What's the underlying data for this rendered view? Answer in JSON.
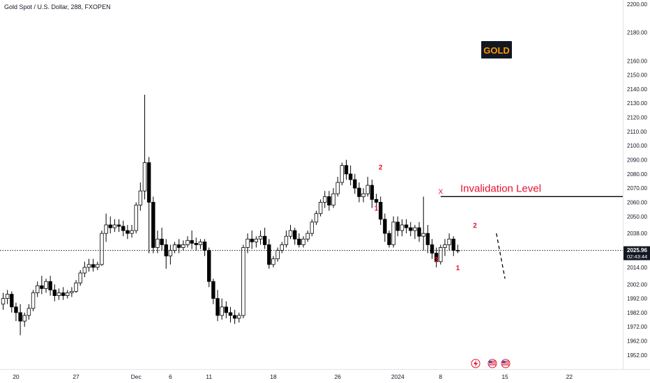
{
  "chart_data": {
    "type": "candlestick",
    "title": "Gold Spot / U.S. Dollar, 288, FXOPEN",
    "symbol_badge": "GOLD",
    "colors": {
      "up": "#ffffff",
      "down": "#000000",
      "wick": "#000000",
      "wave_label": "#e8112d",
      "badge_bg": "#131722",
      "badge_text": "#ff9800"
    },
    "y_axis": {
      "ylim": [
        1948,
        2201
      ],
      "ticks": [
        "2200.00",
        "2180.00",
        "2160.00",
        "2150.00",
        "2140.00",
        "2130.00",
        "2120.00",
        "2110.00",
        "2100.00",
        "2090.00",
        "2080.00",
        "2070.00",
        "2060.00",
        "2050.00",
        "2038.00",
        "2025.96",
        "2014.00",
        "2002.00",
        "1992.00",
        "1982.00",
        "1972.00",
        "1962.00",
        "1952.00"
      ],
      "tick_values": [
        2200,
        2180,
        2160,
        2150,
        2140,
        2130,
        2120,
        2110,
        2100,
        2090,
        2080,
        2070,
        2060,
        2050,
        2038,
        2026,
        2014,
        2002,
        1992,
        1982,
        1972,
        1962,
        1952
      ]
    },
    "x_axis": {
      "ticks": [
        "20",
        "27",
        "Dec",
        "6",
        "11",
        "18",
        "26",
        "2024",
        "8",
        "15",
        "22"
      ],
      "tick_index": [
        3,
        17,
        31,
        39,
        48,
        63,
        78,
        92,
        102,
        117,
        132
      ]
    },
    "current_price": {
      "value": 2025.96,
      "label": "2025.96",
      "countdown": "02:43:44"
    },
    "series": [
      {
        "o": 1988,
        "h": 1996,
        "c": 1992,
        "l": 1984
      },
      {
        "o": 1992,
        "h": 1998,
        "c": 1995,
        "l": 1988
      },
      {
        "o": 1995,
        "h": 1997,
        "c": 1986,
        "l": 1982
      },
      {
        "o": 1986,
        "h": 1989,
        "c": 1982,
        "l": 1976
      },
      {
        "o": 1982,
        "h": 1988,
        "c": 1976,
        "l": 1966
      },
      {
        "o": 1976,
        "h": 1982,
        "c": 1980,
        "l": 1972
      },
      {
        "o": 1980,
        "h": 1988,
        "c": 1985,
        "l": 1977
      },
      {
        "o": 1985,
        "h": 1998,
        "c": 1996,
        "l": 1983
      },
      {
        "o": 1996,
        "h": 2004,
        "c": 2001,
        "l": 1993
      },
      {
        "o": 2001,
        "h": 2008,
        "c": 1999,
        "l": 1995
      },
      {
        "o": 1999,
        "h": 2006,
        "c": 2004,
        "l": 1996
      },
      {
        "o": 2004,
        "h": 2008,
        "c": 1998,
        "l": 1994
      },
      {
        "o": 1998,
        "h": 2002,
        "c": 1994,
        "l": 1990
      },
      {
        "o": 1994,
        "h": 1999,
        "c": 1996,
        "l": 1991
      },
      {
        "o": 1996,
        "h": 2000,
        "c": 1994,
        "l": 1991
      },
      {
        "o": 1994,
        "h": 1998,
        "c": 1996,
        "l": 1992
      },
      {
        "o": 1996,
        "h": 2000,
        "c": 1997,
        "l": 1993
      },
      {
        "o": 1997,
        "h": 2005,
        "c": 2003,
        "l": 1996
      },
      {
        "o": 2003,
        "h": 2012,
        "c": 2010,
        "l": 2001
      },
      {
        "o": 2010,
        "h": 2018,
        "c": 2014,
        "l": 2007
      },
      {
        "o": 2014,
        "h": 2020,
        "c": 2016,
        "l": 2011
      },
      {
        "o": 2016,
        "h": 2020,
        "c": 2014,
        "l": 2011
      },
      {
        "o": 2014,
        "h": 2018,
        "c": 2016,
        "l": 2012
      },
      {
        "o": 2016,
        "h": 2040,
        "c": 2038,
        "l": 2015
      },
      {
        "o": 2038,
        "h": 2052,
        "c": 2044,
        "l": 2032
      },
      {
        "o": 2044,
        "h": 2050,
        "c": 2042,
        "l": 2038
      },
      {
        "o": 2042,
        "h": 2048,
        "c": 2044,
        "l": 2039
      },
      {
        "o": 2044,
        "h": 2048,
        "c": 2043,
        "l": 2039
      },
      {
        "o": 2043,
        "h": 2047,
        "c": 2040,
        "l": 2036
      },
      {
        "o": 2040,
        "h": 2044,
        "c": 2038,
        "l": 2034
      },
      {
        "o": 2038,
        "h": 2044,
        "c": 2040,
        "l": 2035
      },
      {
        "o": 2040,
        "h": 2060,
        "c": 2058,
        "l": 2038
      },
      {
        "o": 2058,
        "h": 2074,
        "c": 2068,
        "l": 2054
      },
      {
        "o": 2068,
        "h": 2136,
        "c": 2088,
        "l": 2062
      },
      {
        "o": 2088,
        "h": 2092,
        "c": 2060,
        "l": 2024
      },
      {
        "o": 2060,
        "h": 2064,
        "c": 2028,
        "l": 2024
      },
      {
        "o": 2028,
        "h": 2040,
        "c": 2034,
        "l": 2024
      },
      {
        "o": 2034,
        "h": 2042,
        "c": 2030,
        "l": 2026
      },
      {
        "o": 2030,
        "h": 2034,
        "c": 2022,
        "l": 2013
      },
      {
        "o": 2022,
        "h": 2030,
        "c": 2026,
        "l": 2016
      },
      {
        "o": 2026,
        "h": 2032,
        "c": 2030,
        "l": 2024
      },
      {
        "o": 2030,
        "h": 2034,
        "c": 2028,
        "l": 2024
      },
      {
        "o": 2028,
        "h": 2033,
        "c": 2030,
        "l": 2026
      },
      {
        "o": 2030,
        "h": 2036,
        "c": 2033,
        "l": 2028
      },
      {
        "o": 2033,
        "h": 2040,
        "c": 2031,
        "l": 2027
      },
      {
        "o": 2031,
        "h": 2035,
        "c": 2030,
        "l": 2026
      },
      {
        "o": 2030,
        "h": 2034,
        "c": 2032,
        "l": 2027
      },
      {
        "o": 2032,
        "h": 2034,
        "c": 2026,
        "l": 2022
      },
      {
        "o": 2026,
        "h": 2028,
        "c": 2004,
        "l": 2000
      },
      {
        "o": 2004,
        "h": 2006,
        "c": 1992,
        "l": 1988
      },
      {
        "o": 1992,
        "h": 1998,
        "c": 1980,
        "l": 1976
      },
      {
        "o": 1980,
        "h": 1992,
        "c": 1986,
        "l": 1977
      },
      {
        "o": 1986,
        "h": 1990,
        "c": 1982,
        "l": 1978
      },
      {
        "o": 1982,
        "h": 1986,
        "c": 1980,
        "l": 1975
      },
      {
        "o": 1980,
        "h": 1984,
        "c": 1978,
        "l": 1974
      },
      {
        "o": 1978,
        "h": 1982,
        "c": 1980,
        "l": 1975
      },
      {
        "o": 1980,
        "h": 2030,
        "c": 2028,
        "l": 1978
      },
      {
        "o": 2028,
        "h": 2038,
        "c": 2034,
        "l": 2024
      },
      {
        "o": 2034,
        "h": 2040,
        "c": 2032,
        "l": 2027
      },
      {
        "o": 2032,
        "h": 2036,
        "c": 2034,
        "l": 2028
      },
      {
        "o": 2034,
        "h": 2040,
        "c": 2036,
        "l": 2030
      },
      {
        "o": 2036,
        "h": 2042,
        "c": 2030,
        "l": 2027
      },
      {
        "o": 2030,
        "h": 2034,
        "c": 2016,
        "l": 2013
      },
      {
        "o": 2016,
        "h": 2022,
        "c": 2020,
        "l": 2014
      },
      {
        "o": 2020,
        "h": 2028,
        "c": 2026,
        "l": 2018
      },
      {
        "o": 2026,
        "h": 2032,
        "c": 2030,
        "l": 2024
      },
      {
        "o": 2030,
        "h": 2040,
        "c": 2036,
        "l": 2028
      },
      {
        "o": 2036,
        "h": 2044,
        "c": 2040,
        "l": 2034
      },
      {
        "o": 2040,
        "h": 2042,
        "c": 2034,
        "l": 2030
      },
      {
        "o": 2034,
        "h": 2038,
        "c": 2030,
        "l": 2028
      },
      {
        "o": 2030,
        "h": 2036,
        "c": 2034,
        "l": 2028
      },
      {
        "o": 2034,
        "h": 2040,
        "c": 2038,
        "l": 2032
      },
      {
        "o": 2038,
        "h": 2048,
        "c": 2046,
        "l": 2036
      },
      {
        "o": 2046,
        "h": 2054,
        "c": 2052,
        "l": 2044
      },
      {
        "o": 2052,
        "h": 2062,
        "c": 2060,
        "l": 2050
      },
      {
        "o": 2060,
        "h": 2068,
        "c": 2064,
        "l": 2056
      },
      {
        "o": 2064,
        "h": 2068,
        "c": 2058,
        "l": 2054
      },
      {
        "o": 2058,
        "h": 2070,
        "c": 2066,
        "l": 2056
      },
      {
        "o": 2066,
        "h": 2078,
        "c": 2074,
        "l": 2064
      },
      {
        "o": 2074,
        "h": 2088,
        "c": 2086,
        "l": 2072
      },
      {
        "o": 2086,
        "h": 2090,
        "c": 2080,
        "l": 2076
      },
      {
        "o": 2080,
        "h": 2086,
        "c": 2076,
        "l": 2072
      },
      {
        "o": 2076,
        "h": 2080,
        "c": 2070,
        "l": 2066
      },
      {
        "o": 2070,
        "h": 2074,
        "c": 2064,
        "l": 2060
      },
      {
        "o": 2064,
        "h": 2070,
        "c": 2066,
        "l": 2060
      },
      {
        "o": 2066,
        "h": 2078,
        "c": 2072,
        "l": 2064
      },
      {
        "o": 2072,
        "h": 2076,
        "c": 2062,
        "l": 2056
      },
      {
        "o": 2062,
        "h": 2066,
        "c": 2060,
        "l": 2054
      },
      {
        "o": 2060,
        "h": 2064,
        "c": 2048,
        "l": 2044
      },
      {
        "o": 2048,
        "h": 2052,
        "c": 2038,
        "l": 2032
      },
      {
        "o": 2038,
        "h": 2040,
        "c": 2030,
        "l": 2028
      },
      {
        "o": 2030,
        "h": 2050,
        "c": 2046,
        "l": 2028
      },
      {
        "o": 2046,
        "h": 2050,
        "c": 2040,
        "l": 2036
      },
      {
        "o": 2040,
        "h": 2048,
        "c": 2044,
        "l": 2036
      },
      {
        "o": 2044,
        "h": 2048,
        "c": 2042,
        "l": 2038
      },
      {
        "o": 2042,
        "h": 2046,
        "c": 2040,
        "l": 2036
      },
      {
        "o": 2040,
        "h": 2044,
        "c": 2042,
        "l": 2034
      },
      {
        "o": 2042,
        "h": 2046,
        "c": 2036,
        "l": 2032
      },
      {
        "o": 2036,
        "h": 2064,
        "c": 2038,
        "l": 2026
      },
      {
        "o": 2038,
        "h": 2044,
        "c": 2030,
        "l": 2024
      },
      {
        "o": 2030,
        "h": 2034,
        "c": 2024,
        "l": 2020
      },
      {
        "o": 2024,
        "h": 2028,
        "c": 2018,
        "l": 2014
      },
      {
        "o": 2018,
        "h": 2030,
        "c": 2028,
        "l": 2016
      },
      {
        "o": 2028,
        "h": 2034,
        "c": 2030,
        "l": 2022
      },
      {
        "o": 2030,
        "h": 2038,
        "c": 2034,
        "l": 2026
      },
      {
        "o": 2034,
        "h": 2036,
        "c": 2026,
        "l": 2022
      },
      {
        "o": 2026,
        "h": 2030,
        "c": 2026,
        "l": 2024
      }
    ],
    "annotations": {
      "invalidation": {
        "label": "Invalidation Level",
        "price": 2064,
        "start_index": 102,
        "marker": "X"
      },
      "wave_labels": [
        {
          "text": "2",
          "index": 88,
          "price": 2083
        },
        {
          "text": "1",
          "index": 87,
          "price": 2054
        },
        {
          "text": "3",
          "index": 101,
          "price": 2018
        },
        {
          "text": "1",
          "index": 106,
          "price": 2012
        },
        {
          "text": "2",
          "index": 110,
          "price": 2042
        }
      ],
      "projection": {
        "from_index": 115,
        "from_price": 2038,
        "to_index": 117,
        "to_price": 2006
      }
    },
    "grid": false,
    "legend": "top-left"
  }
}
